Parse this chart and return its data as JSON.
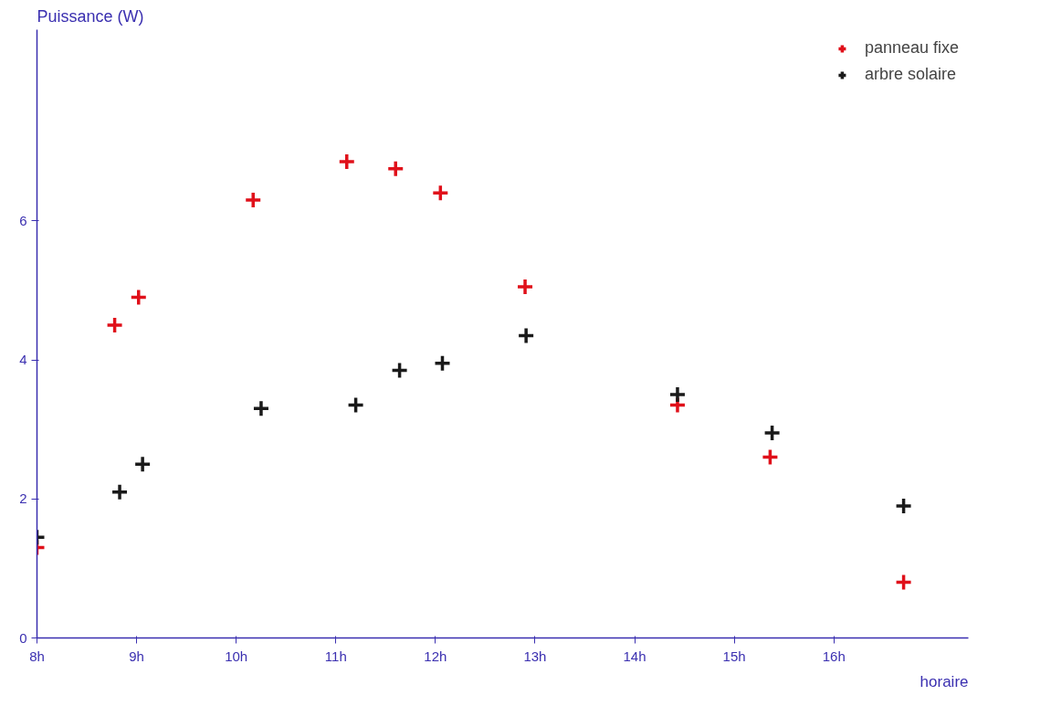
{
  "chart_data": {
    "type": "scatter",
    "ylabel": "Puissance (W)",
    "xlabel": "horaire",
    "xlim": [
      8,
      17.35
    ],
    "ylim": [
      0,
      8.75
    ],
    "xticks": [
      {
        "value": 8,
        "label": "8h"
      },
      {
        "value": 9,
        "label": "9h"
      },
      {
        "value": 10,
        "label": "10h"
      },
      {
        "value": 11,
        "label": "11h"
      },
      {
        "value": 12,
        "label": "12h"
      },
      {
        "value": 13,
        "label": "13h"
      },
      {
        "value": 14,
        "label": "14h"
      },
      {
        "value": 15,
        "label": "15h"
      },
      {
        "value": 16,
        "label": "16h"
      }
    ],
    "yticks": [
      0,
      2,
      4,
      6
    ],
    "marker": "cross",
    "grid": false,
    "legend": "top right",
    "series": [
      {
        "name": "panneau fixe",
        "color": "#e0101a",
        "x": [
          8.0,
          8.78,
          9.02,
          10.17,
          11.11,
          11.6,
          12.05,
          12.9,
          14.43,
          15.36,
          16.7
        ],
        "values": [
          1.3,
          4.5,
          4.9,
          6.3,
          6.85,
          6.75,
          6.4,
          5.05,
          3.35,
          2.6,
          0.8
        ]
      },
      {
        "name": "arbre solaire",
        "color": "#1a1a1a",
        "x": [
          8.0,
          8.83,
          9.06,
          10.25,
          11.2,
          11.64,
          12.07,
          12.91,
          14.43,
          15.38,
          16.7
        ],
        "values": [
          1.45,
          2.1,
          2.5,
          3.3,
          3.35,
          3.85,
          3.95,
          4.35,
          3.5,
          2.95,
          1.9
        ]
      }
    ]
  }
}
